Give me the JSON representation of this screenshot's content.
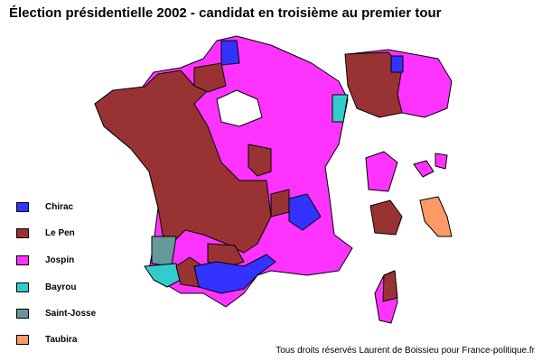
{
  "title": "Élection présidentielle 2002 - candidat en troisième au premier tour",
  "legend": [
    {
      "label": "Chirac",
      "color": "#3333ff"
    },
    {
      "label": "Le Pen",
      "color": "#993333"
    },
    {
      "label": "Jospin",
      "color": "#ff33ff"
    },
    {
      "label": "Bayrou",
      "color": "#33cccc"
    },
    {
      "label": "Saint-Josse",
      "color": "#669999"
    },
    {
      "label": "Taubira",
      "color": "#ff9966"
    }
  ],
  "credit": "Tous droits réservés Laurent de Boissieu pour France-politique.fr"
}
